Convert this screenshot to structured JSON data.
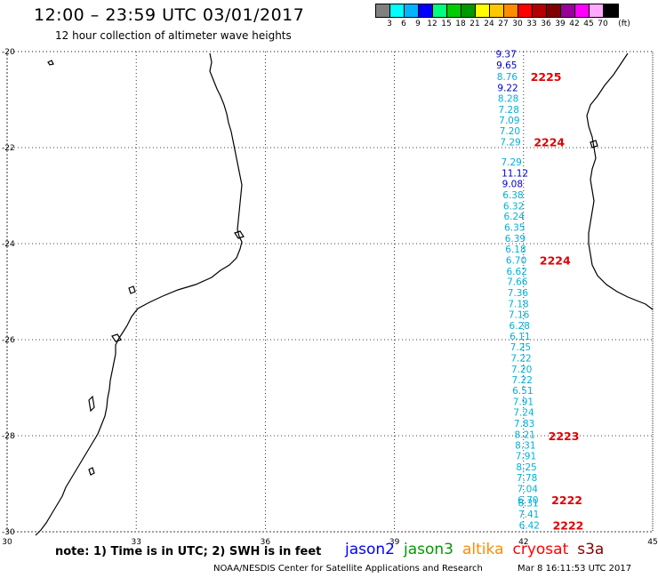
{
  "header": {
    "title": "12:00 – 23:59 UTC 03/01/2017",
    "subtitle": "12 hour collection of altimeter wave heights"
  },
  "legend": {
    "colors": [
      "#808080",
      "#00ffff",
      "#00b4ff",
      "#0000ff",
      "#00ff7f",
      "#00cc00",
      "#009900",
      "#ffff00",
      "#ffc800",
      "#ff8c00",
      "#ff0000",
      "#b40000",
      "#800000",
      "#990099",
      "#ff00ff",
      "#ffaaff",
      "#000000"
    ],
    "ticks": [
      "3",
      "6",
      "9",
      "12",
      "15",
      "18",
      "21",
      "24",
      "27",
      "30",
      "33",
      "36",
      "39",
      "42",
      "45",
      "70",
      "(ft)"
    ]
  },
  "map": {
    "lon_range": [
      30,
      45
    ],
    "lat_range": [
      -30,
      -20
    ],
    "lon_ticks": [
      "30",
      "33",
      "36",
      "39",
      "42",
      "45"
    ],
    "lat_ticks": [
      "-20",
      "-22",
      "-24",
      "-26",
      "-28",
      "-30"
    ],
    "grid": "dotted",
    "coast_color": "#000000",
    "track_colors": {
      "teal": "#00b0d8",
      "blue": "#0000c8",
      "label": "#e00000"
    },
    "readings": [
      {
        "lat": -20.05,
        "value": "9.37",
        "color": "blue"
      },
      {
        "lat": -20.28,
        "value": "9.65",
        "color": "blue"
      },
      {
        "lat": -20.52,
        "value": "8.76",
        "color": "teal"
      },
      {
        "lat": -20.75,
        "value": "9.22",
        "color": "blue"
      },
      {
        "lat": -20.97,
        "value": "8.28",
        "color": "teal"
      },
      {
        "lat": -21.2,
        "value": "7.28",
        "color": "teal"
      },
      {
        "lat": -21.43,
        "value": "7.09",
        "color": "teal"
      },
      {
        "lat": -21.65,
        "value": "7.20",
        "color": "teal"
      },
      {
        "lat": -21.88,
        "value": "7.29",
        "color": "teal"
      },
      {
        "lat": -22.3,
        "value": "7.29",
        "color": "teal"
      },
      {
        "lat": -22.53,
        "value": "11.12",
        "color": "blue"
      },
      {
        "lat": -22.75,
        "value": "9.08",
        "color": "blue"
      },
      {
        "lat": -22.98,
        "value": "6.38",
        "color": "teal"
      },
      {
        "lat": -23.21,
        "value": "6.32",
        "color": "teal"
      },
      {
        "lat": -23.43,
        "value": "6.24",
        "color": "teal"
      },
      {
        "lat": -23.66,
        "value": "6.35",
        "color": "teal"
      },
      {
        "lat": -23.89,
        "value": "6.39",
        "color": "teal"
      },
      {
        "lat": -24.11,
        "value": "6.18",
        "color": "teal"
      },
      {
        "lat": -24.34,
        "value": "6.70",
        "color": "teal"
      },
      {
        "lat": -24.57,
        "value": "6.62",
        "color": "teal"
      },
      {
        "lat": -24.79,
        "value": "7.66",
        "color": "teal"
      },
      {
        "lat": -25.02,
        "value": "7.36",
        "color": "teal"
      },
      {
        "lat": -25.25,
        "value": "7.18",
        "color": "teal"
      },
      {
        "lat": -25.47,
        "value": "7.16",
        "color": "teal"
      },
      {
        "lat": -25.7,
        "value": "6.28",
        "color": "teal"
      },
      {
        "lat": -25.93,
        "value": "6.11",
        "color": "teal"
      },
      {
        "lat": -26.15,
        "value": "7.25",
        "color": "teal"
      },
      {
        "lat": -26.38,
        "value": "7.22",
        "color": "teal"
      },
      {
        "lat": -26.61,
        "value": "7.20",
        "color": "teal"
      },
      {
        "lat": -26.83,
        "value": "7.22",
        "color": "teal"
      },
      {
        "lat": -27.06,
        "value": "6.51",
        "color": "teal"
      },
      {
        "lat": -27.29,
        "value": "7.91",
        "color": "teal"
      },
      {
        "lat": -27.51,
        "value": "7.24",
        "color": "teal"
      },
      {
        "lat": -27.74,
        "value": "7.83",
        "color": "teal"
      },
      {
        "lat": -27.97,
        "value": "8.21",
        "color": "teal"
      },
      {
        "lat": -28.19,
        "value": "8.31",
        "color": "teal"
      },
      {
        "lat": -28.42,
        "value": "7.91",
        "color": "teal"
      },
      {
        "lat": -28.65,
        "value": "8.25",
        "color": "teal"
      },
      {
        "lat": -28.87,
        "value": "7.78",
        "color": "teal"
      },
      {
        "lat": -29.1,
        "value": "7.04",
        "color": "teal"
      },
      {
        "lat": -29.33,
        "value": "6.70",
        "color": "teal"
      },
      {
        "lat": -29.4,
        "value": "6.31",
        "color": "teal"
      },
      {
        "lat": -29.63,
        "value": "7.41",
        "color": "teal"
      },
      {
        "lat": -29.86,
        "value": "6.42",
        "color": "teal"
      }
    ],
    "time_labels": [
      {
        "lat": -20.52,
        "text": "2225"
      },
      {
        "lat": -21.88,
        "text": "2224"
      },
      {
        "lat": -24.34,
        "text": "2224"
      },
      {
        "lat": -28.0,
        "text": "2223"
      },
      {
        "lat": -29.33,
        "text": "2222"
      },
      {
        "lat": -29.86,
        "text": "2222"
      }
    ]
  },
  "footer": {
    "note": "note: 1) Time is in UTC; 2) SWH is in feet",
    "missions": [
      {
        "name": "jason2",
        "color": "#0000ff"
      },
      {
        "name": "jason3",
        "color": "#009900"
      },
      {
        "name": "altika",
        "color": "#ff8c00"
      },
      {
        "name": "cryosat",
        "color": "#ff0000"
      },
      {
        "name": "s3a",
        "color": "#800000"
      }
    ],
    "credit": "NOAA/NESDIS Center for Satellite Applications and Research",
    "timestamp": "Mar  8 16:11:53 UTC 2017"
  }
}
